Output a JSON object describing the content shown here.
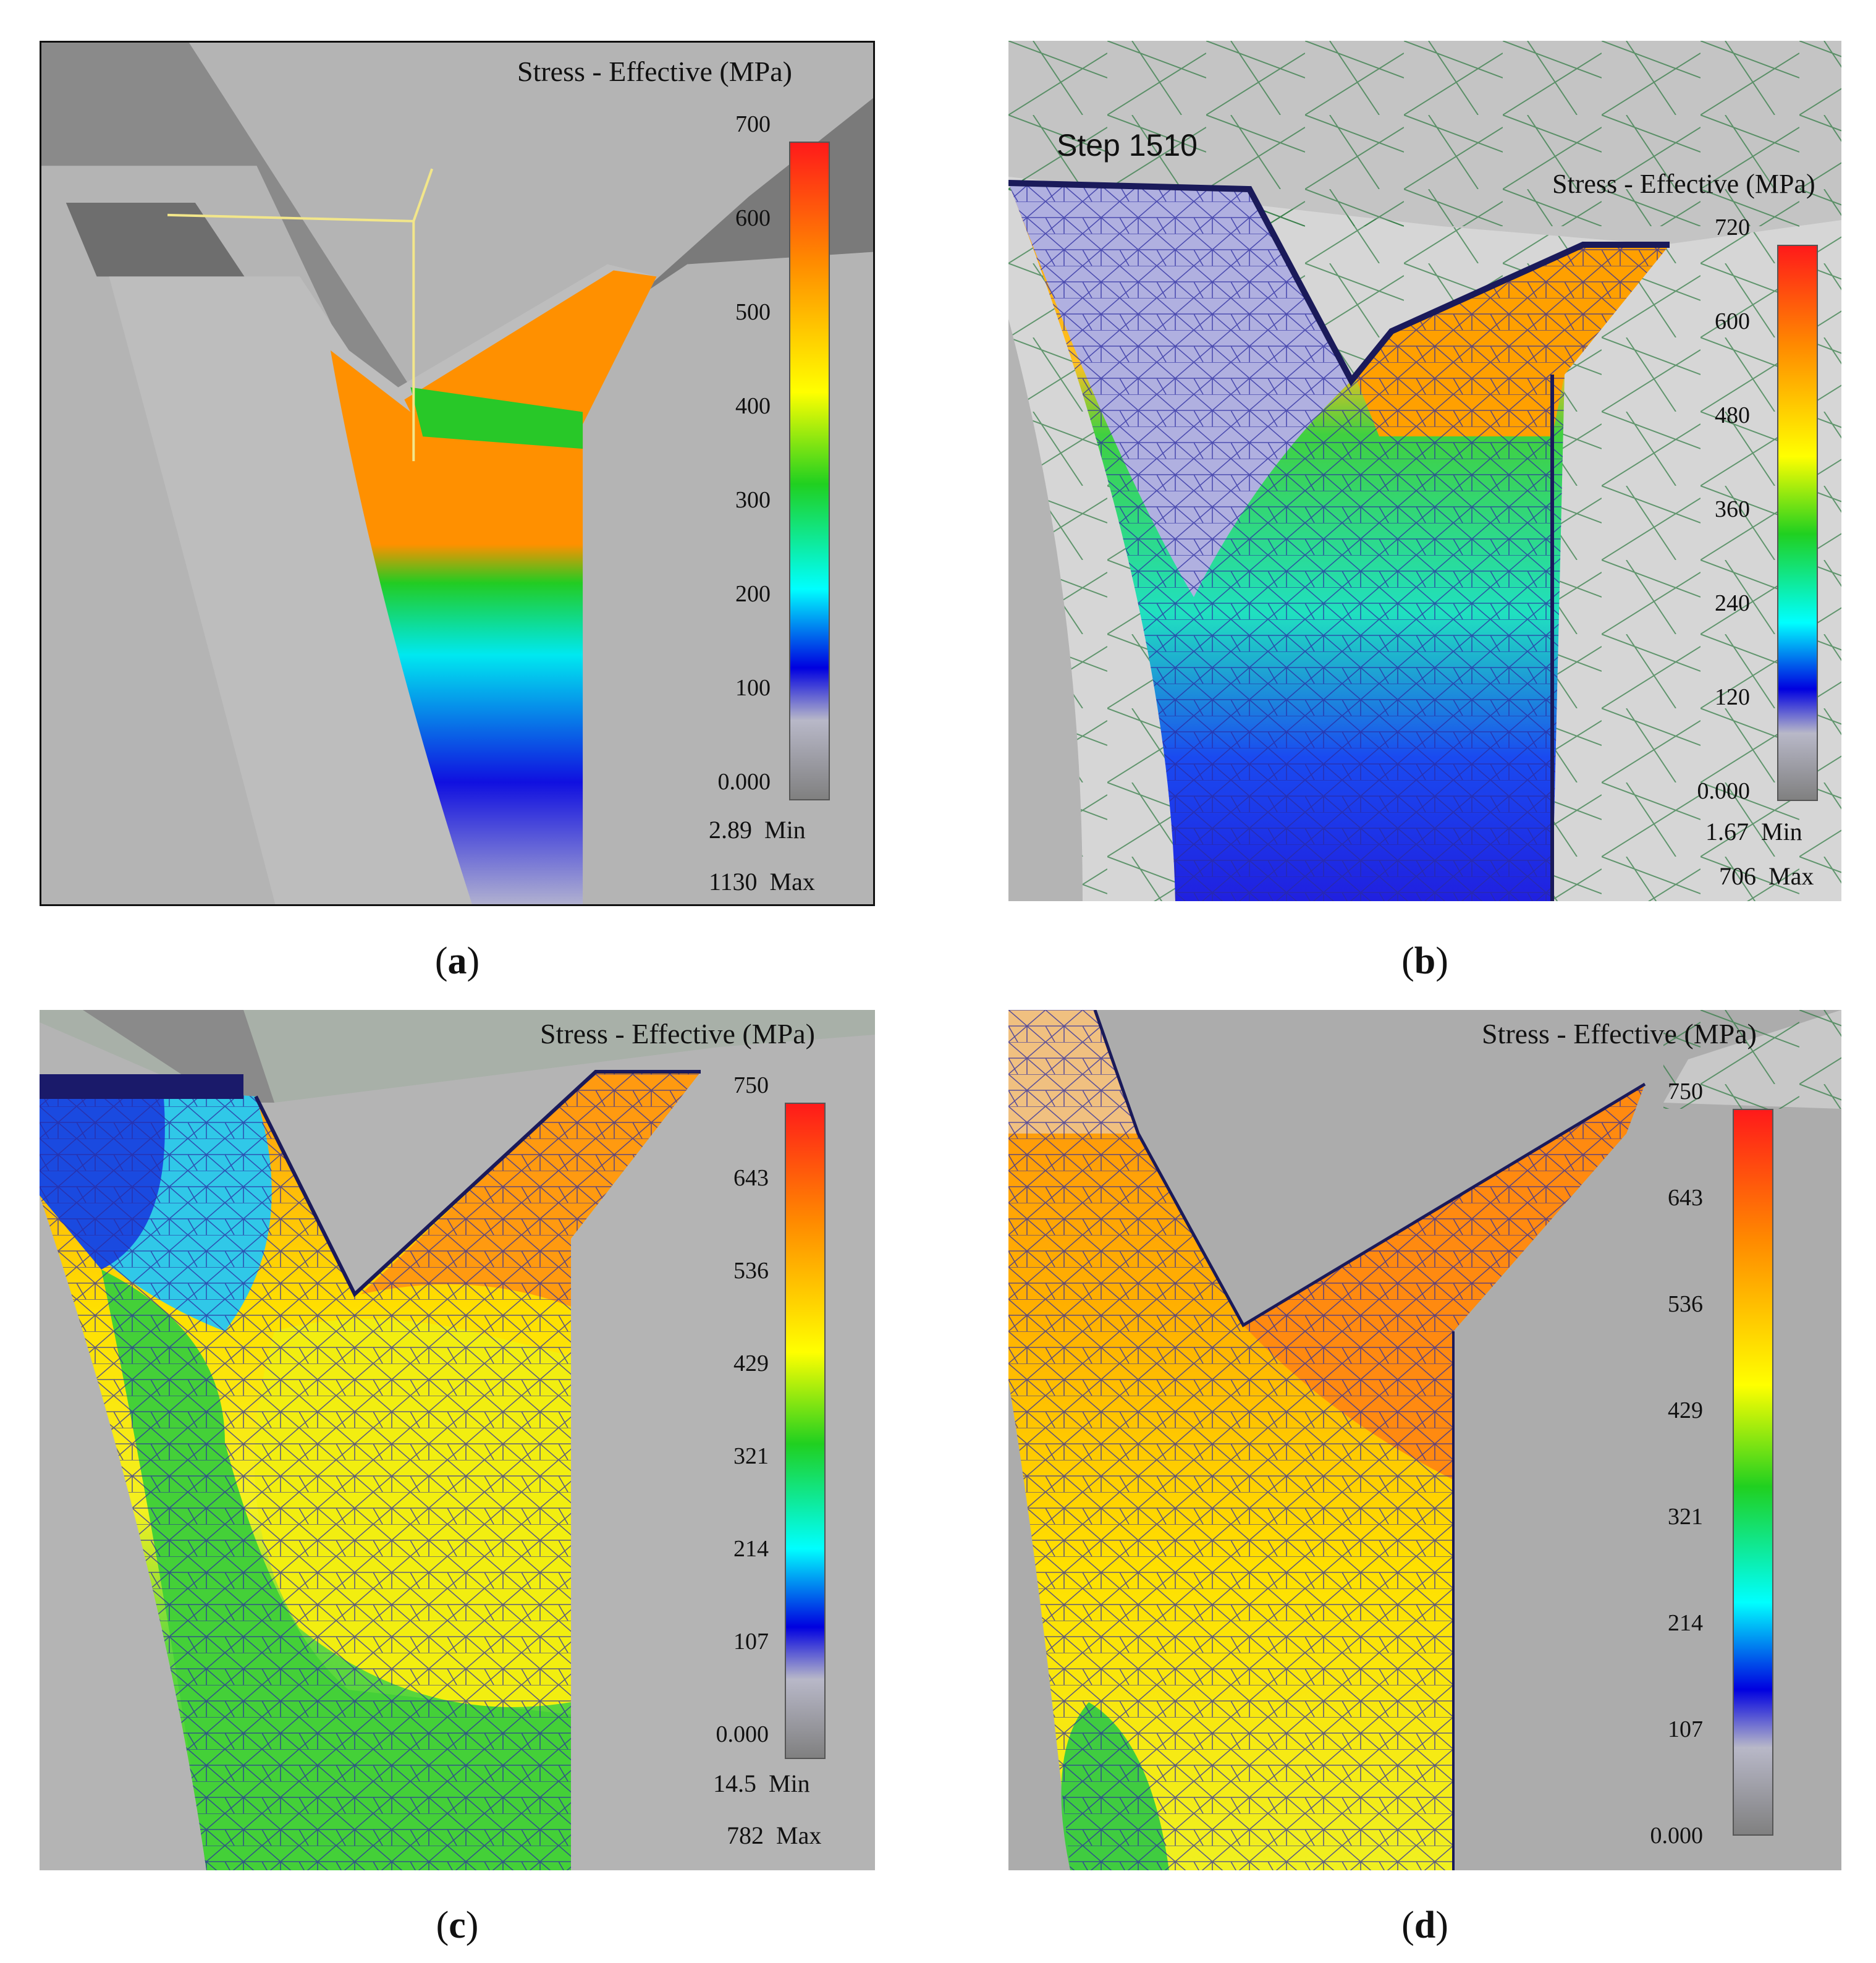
{
  "panels": [
    {
      "caption_letter": "a",
      "legend_title": "Stress - Effective (MPa)",
      "ticks": [
        "700",
        "600",
        "500",
        "400",
        "300",
        "200",
        "100",
        "0.000"
      ],
      "min_value": "2.89",
      "min_label": "Min",
      "max_value": "1130",
      "max_label": "Max"
    },
    {
      "caption_letter": "b",
      "step_label": "Step 1510",
      "legend_title": "Stress - Effective (MPa)",
      "ticks": [
        "720",
        "600",
        "480",
        "360",
        "240",
        "120",
        "0.000"
      ],
      "min_value": "1.67",
      "min_label": "Min",
      "max_value": "706",
      "max_label": "Max"
    },
    {
      "caption_letter": "c",
      "legend_title": "Stress - Effective (MPa)",
      "ticks": [
        "750",
        "643",
        "536",
        "429",
        "321",
        "214",
        "107",
        "0.000"
      ],
      "min_value": "14.5",
      "min_label": "Min",
      "max_value": "782",
      "max_label": "Max"
    },
    {
      "caption_letter": "d",
      "legend_title": "Stress - Effective (MPa)",
      "ticks": [
        "750",
        "643",
        "536",
        "429",
        "321",
        "214",
        "107",
        "0.000"
      ]
    }
  ],
  "colors": {
    "background": "#b4b4b4",
    "mesh": "#2a2aa0",
    "scale": [
      "#ff1a1a",
      "#ff8a00",
      "#ffff00",
      "#20d020",
      "#00ffff",
      "#0000e0",
      "#b8b8c8",
      "#808080"
    ]
  }
}
